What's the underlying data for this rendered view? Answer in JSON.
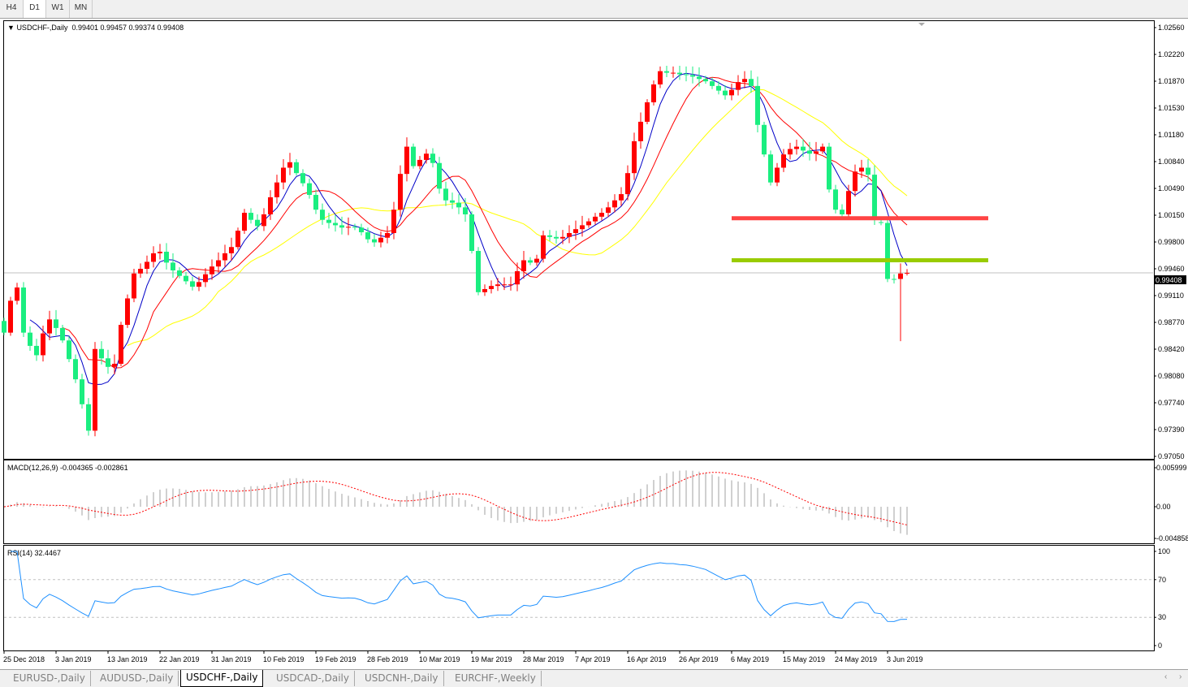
{
  "timeframes": [
    {
      "label": "H4",
      "active": false
    },
    {
      "label": "D1",
      "active": true
    },
    {
      "label": "W1",
      "active": false
    },
    {
      "label": "MN",
      "active": false
    }
  ],
  "chart": {
    "symbol_header": "USDCHF-,Daily",
    "ohlc_header": "0.99401 0.99457 0.99374 0.99408",
    "current_price": "0.99408",
    "colors": {
      "bull": "#ff0000",
      "bear": "#1aee80",
      "ma_fast": "#0000c8",
      "ma_mid": "#ff0000",
      "ma_slow": "#ffff00",
      "resistance_line": "#ff4444",
      "support_line": "#99cc00"
    },
    "moving_average_periods": [
      5,
      10,
      20
    ],
    "horizontal_levels": [
      {
        "name": "resistance",
        "price": 1.0011,
        "color": "#ff4444"
      },
      {
        "name": "support",
        "price": 0.9957,
        "color": "#99cc00"
      }
    ],
    "price_axis": {
      "range": [
        0.9705,
        1.0256
      ],
      "ticks": [
        "1.02560",
        "1.02220",
        "1.01870",
        "1.01530",
        "1.01180",
        "1.00840",
        "1.00490",
        "1.00150",
        "0.99800",
        "0.99460",
        "0.99110",
        "0.98770",
        "0.98420",
        "0.98080",
        "0.97740",
        "0.97390",
        "0.97050"
      ]
    },
    "closes": [
      0.9864,
      0.9905,
      0.9922,
      0.9864,
      0.9847,
      0.9835,
      0.9863,
      0.9881,
      0.987,
      0.9854,
      0.983,
      0.9804,
      0.9772,
      0.9738,
      0.9843,
      0.9831,
      0.982,
      0.9824,
      0.9874,
      0.9908,
      0.994,
      0.9946,
      0.9955,
      0.9966,
      0.9968,
      0.9954,
      0.9944,
      0.9937,
      0.993,
      0.9923,
      0.9929,
      0.9939,
      0.9949,
      0.9957,
      0.9966,
      0.9974,
      0.9995,
      1.0018,
      1.0009,
      1.0001,
      1.0016,
      1.0038,
      1.0057,
      1.0076,
      1.0083,
      1.0069,
      1.0056,
      1.0041,
      1.0022,
      1.0009,
      1.0005,
      1.0002,
      0.9999,
      1.0,
      0.9999,
      0.9993,
      0.9984,
      0.998,
      0.9986,
      0.9992,
      1.0022,
      1.0068,
      1.0103,
      1.0078,
      1.0086,
      1.0094,
      1.0082,
      1.0049,
      1.0034,
      1.0031,
      1.0025,
      1.0016,
      0.9969,
      0.9916,
      0.992,
      0.9924,
      0.9926,
      0.9926,
      0.9926,
      0.9943,
      0.9957,
      0.9954,
      0.9959,
      0.9989,
      0.9987,
      0.9985,
      0.9987,
      0.9992,
      0.9997,
      1.0002,
      1.0007,
      1.0013,
      1.0018,
      1.0025,
      1.0034,
      1.0042,
      1.0069,
      1.011,
      1.0135,
      1.016,
      1.0183,
      1.02,
      1.0198,
      1.0198,
      1.0196,
      1.0195,
      1.0193,
      1.019,
      1.0187,
      1.0181,
      1.0175,
      1.0169,
      1.0176,
      1.0186,
      1.019,
      1.0181,
      1.0131,
      1.0093,
      1.0057,
      1.0076,
      1.0093,
      1.01,
      1.0103,
      1.0098,
      1.0094,
      1.0097,
      1.0103,
      1.0048,
      1.0022,
      1.0016,
      1.0046,
      1.0071,
      1.0076,
      1.0067,
      1.0012,
      1.0005,
      0.9933,
      0.9932,
      0.994,
      0.99408
    ],
    "ohlc_overrides": {
      "135": [
        1.0006,
        1.001,
        1.0002,
        1.0005
      ],
      "138": [
        0.9933,
        0.9953,
        0.9853,
        0.994
      ],
      "139": [
        0.99401,
        0.99457,
        0.99374,
        0.99408
      ]
    },
    "date_labels": [
      "25 Dec 2018",
      "3 Jan 2019",
      "13 Jan 2019",
      "22 Jan 2019",
      "31 Jan 2019",
      "10 Feb 2019",
      "19 Feb 2019",
      "28 Feb 2019",
      "10 Mar 2019",
      "19 Mar 2019",
      "28 Mar 2019",
      "7 Apr 2019",
      "16 Apr 2019",
      "26 Apr 2019",
      "6 May 2019",
      "15 May 2019",
      "24 May 2019",
      "3 Jun 2019"
    ]
  },
  "macd": {
    "title": "MACD(12,26,9) -0.004365 -0.002861",
    "range": [
      -0.004858,
      0.005999
    ],
    "ticks": [
      "0.005999",
      "0.00",
      "-0.004858"
    ]
  },
  "rsi": {
    "title": "RSI(14) 32.4467",
    "period": 14,
    "levels": [
      70,
      30
    ],
    "ticks": [
      "100",
      "70",
      "30",
      "0"
    ],
    "color": "#1e90ff"
  },
  "tabs": [
    {
      "label": "EURUSD-,Daily",
      "active": false
    },
    {
      "label": "AUDUSD-,Daily",
      "active": false
    },
    {
      "label": "USDCHF-,Daily",
      "active": true
    },
    {
      "label": "USDCAD-,Daily",
      "active": false
    },
    {
      "label": "USDCNH-,Daily",
      "active": false
    },
    {
      "label": "EURCHF-,Weekly",
      "active": false
    }
  ],
  "tab_nav": {
    "prev": "‹",
    "next": "›"
  }
}
